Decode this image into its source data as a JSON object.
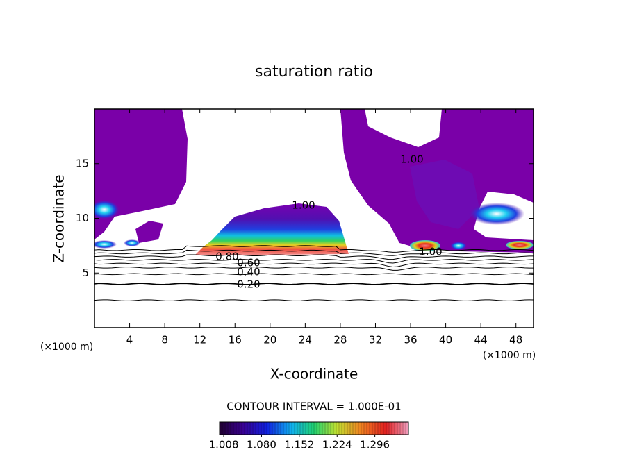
{
  "chart_data": {
    "type": "contour",
    "title": "saturation ratio",
    "xlabel": "X-coordinate",
    "ylabel": "Z-coordinate",
    "x_unit": "(×1000 m)",
    "xlim": [
      0,
      50
    ],
    "ylim": [
      0,
      20
    ],
    "xticks": [
      4,
      8,
      12,
      16,
      20,
      24,
      28,
      32,
      36,
      40,
      44,
      48
    ],
    "yticks": [
      5,
      10,
      15
    ],
    "contour_levels": [
      0.1,
      0.2,
      0.3,
      0.4,
      0.5,
      0.6,
      0.7,
      0.8,
      0.9
    ],
    "contour_labels": [
      {
        "value": 1,
        "label": "1.00"
      },
      {
        "value": 1,
        "label": "1.00"
      },
      {
        "value": 1,
        "label": "1.00"
      },
      {
        "value": 0.8,
        "label": "0.80"
      },
      {
        "value": 0.6,
        "label": "0.60"
      },
      {
        "value": 0.4,
        "label": "0.40"
      },
      {
        "value": 0.2,
        "label": "0.20"
      }
    ],
    "contour_interval": "CONTOUR INTERVAL = 1.000E-01",
    "colorbar": {
      "clim": [
        1.0,
        1.36
      ],
      "ticks": [
        1.008,
        {
          "value": 1.08,
          "label": "1.080"
        },
        1.152,
        1.224,
        1.296
      ]
    }
  }
}
